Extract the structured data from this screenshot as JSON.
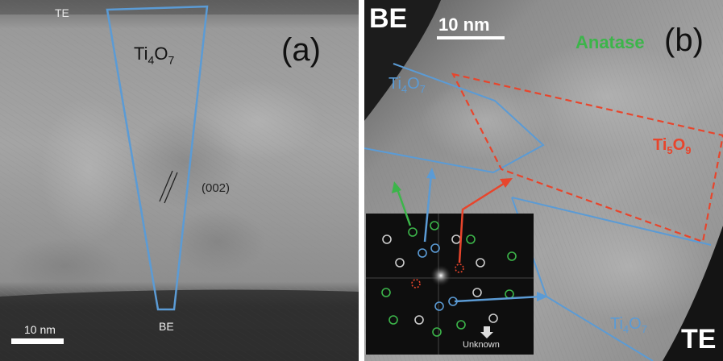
{
  "panel_a": {
    "letter": "(a)",
    "top_electrode": "TE",
    "bottom_electrode": "BE",
    "phase": {
      "base": "Ti",
      "sub1": "4",
      "mid": "O",
      "sub2": "7"
    },
    "plane": "(002)",
    "scale_bar": "10 nm",
    "colors": {
      "outline": "#5b9bd5"
    }
  },
  "panel_b": {
    "letter": "(b)",
    "bottom_electrode": "BE",
    "top_electrode": "TE",
    "scale_bar": "10 nm",
    "anatase": "Anatase",
    "phase_top": {
      "base": "Ti",
      "sub1": "4",
      "mid": "O",
      "sub2": "7"
    },
    "phase_mid": {
      "base": "Ti",
      "sub1": "5",
      "mid": "O",
      "sub2": "9"
    },
    "phase_bottom": {
      "base": "Ti",
      "sub1": "4",
      "mid": "O",
      "sub2": "7"
    },
    "fft_unknown": "Unknown",
    "colors": {
      "ti4o7": "#5b9bd5",
      "ti5o9": "#e8452c",
      "anatase": "#3cb54a",
      "unknown": "#cccccc"
    }
  }
}
